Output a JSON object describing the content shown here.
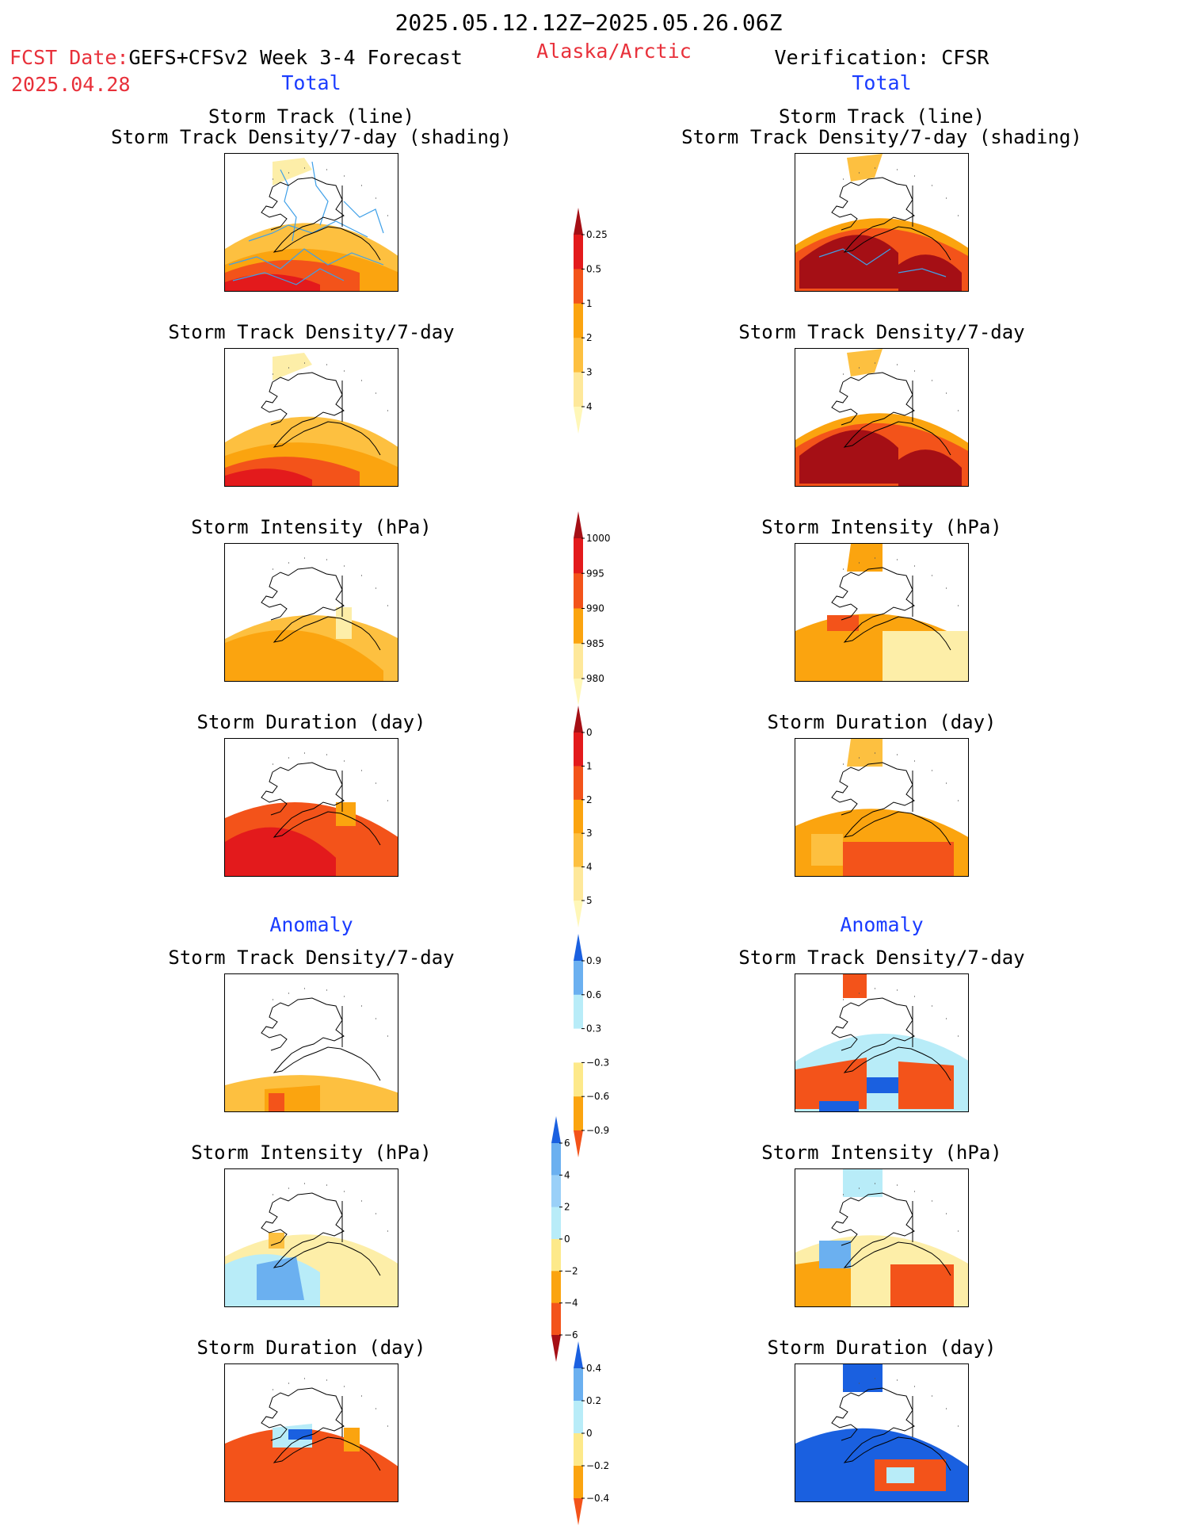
{
  "header": {
    "period": "2025.05.12.12Z−2025.05.26.06Z",
    "fcst_label": "FCST Date:",
    "fcst_model": "GEFS+CFSv2 Week 3-4 Forecast",
    "fcst_date": "2025.04.28",
    "region": "Alaska/Arctic",
    "verification": "Verification: CFSR",
    "total_left": "Total",
    "total_right": "Total",
    "anomaly_left": "Anomaly",
    "anomaly_right": "Anomaly"
  },
  "titles": {
    "track_line": "Storm Track (line)",
    "track_density_shading": "Storm Track Density/7-day (shading)",
    "track_density": "Storm Track Density/7-day",
    "intensity": "Storm Intensity (hPa)",
    "duration": "Storm Duration (day)"
  },
  "colors": {
    "dark_red": "#a50f15",
    "red": "#e31a1c",
    "orange_red": "#f3531a",
    "orange": "#fba40f",
    "light_orange": "#fdc040",
    "yellow": "#fdeea8",
    "light_blue": "#b8ecf8",
    "mid_blue": "#6bb0f0",
    "blue": "#1a60e0",
    "track_line": "#3fa0e8"
  },
  "chart_data": [
    {
      "type": "heatmap",
      "title": "Storm Track (line) Storm Track Density/7-day (shading)",
      "panel": "GEFS+CFSv2 Total",
      "colorbar": "track_density"
    },
    {
      "type": "heatmap",
      "title": "Storm Track (line) Storm Track Density/7-day (shading)",
      "panel": "CFSR Total",
      "colorbar": "track_density"
    },
    {
      "type": "heatmap",
      "title": "Storm Track Density/7-day",
      "panel": "GEFS+CFSv2 Total",
      "colorbar": "track_density"
    },
    {
      "type": "heatmap",
      "title": "Storm Track Density/7-day",
      "panel": "CFSR Total",
      "colorbar": "track_density"
    },
    {
      "type": "heatmap",
      "title": "Storm Intensity (hPa)",
      "panel": "GEFS+CFSv2 Total",
      "colorbar": "intensity"
    },
    {
      "type": "heatmap",
      "title": "Storm Intensity (hPa)",
      "panel": "CFSR Total",
      "colorbar": "intensity"
    },
    {
      "type": "heatmap",
      "title": "Storm Duration (day)",
      "panel": "GEFS+CFSv2 Total",
      "colorbar": "duration"
    },
    {
      "type": "heatmap",
      "title": "Storm Duration (day)",
      "panel": "CFSR Total",
      "colorbar": "duration"
    },
    {
      "type": "heatmap",
      "title": "Storm Track Density/7-day",
      "panel": "GEFS+CFSv2 Anomaly",
      "colorbar": "anom_density"
    },
    {
      "type": "heatmap",
      "title": "Storm Track Density/7-day",
      "panel": "CFSR Anomaly",
      "colorbar": "anom_density"
    },
    {
      "type": "heatmap",
      "title": "Storm Intensity (hPa)",
      "panel": "GEFS+CFSv2 Anomaly",
      "colorbar": "anom_intensity"
    },
    {
      "type": "heatmap",
      "title": "Storm Intensity (hPa)",
      "panel": "CFSR Anomaly",
      "colorbar": "anom_intensity"
    },
    {
      "type": "heatmap",
      "title": "Storm Duration (day)",
      "panel": "GEFS+CFSv2 Anomaly",
      "colorbar": "anom_duration"
    },
    {
      "type": "heatmap",
      "title": "Storm Duration (day)",
      "panel": "CFSR Anomaly",
      "colorbar": "anom_duration"
    }
  ],
  "colorbars": {
    "track_density": {
      "levels": [
        "0.25",
        "0.5",
        "1",
        "2",
        "3",
        "4"
      ],
      "colors": [
        "#fff7b8",
        "#fee89a",
        "#fdc040",
        "#fba40f",
        "#f3531a",
        "#e31a1c",
        "#a50f15"
      ]
    },
    "intensity": {
      "levels": [
        "1000",
        "995",
        "990",
        "985",
        "980"
      ],
      "colors": [
        "#fff7b8",
        "#fee89a",
        "#fba40f",
        "#f3531a",
        "#e31a1c",
        "#a50f15"
      ]
    },
    "duration": {
      "levels": [
        "0",
        "1",
        "2",
        "3",
        "4",
        "5"
      ],
      "colors": [
        "#fff7b8",
        "#fee89a",
        "#fdc040",
        "#fba40f",
        "#f3531a",
        "#e31a1c",
        "#a50f15"
      ]
    },
    "anom_density": {
      "levels": [
        "0.9",
        "0.6",
        "0.3",
        "−0.3",
        "−0.6",
        "−0.9"
      ],
      "colors": [
        "#f3531a",
        "#fba40f",
        "#fde98a",
        "#ffffff",
        "#b8ecf8",
        "#6bb0f0",
        "#1a60e0"
      ]
    },
    "anom_intensity": {
      "levels": [
        "6",
        "4",
        "2",
        "0",
        "−2",
        "−4",
        "−6"
      ],
      "colors": [
        "#a50f15",
        "#f3531a",
        "#fba40f",
        "#fde98a",
        "#b8ecf8",
        "#9ad0f8",
        "#6bb0f0",
        "#1a60e0"
      ]
    },
    "anom_duration": {
      "levels": [
        "0.4",
        "0.2",
        "0",
        "−0.2",
        "−0.4"
      ],
      "colors": [
        "#f3531a",
        "#fba40f",
        "#fde98a",
        "#b8ecf8",
        "#6bb0f0",
        "#1a60e0"
      ]
    }
  }
}
